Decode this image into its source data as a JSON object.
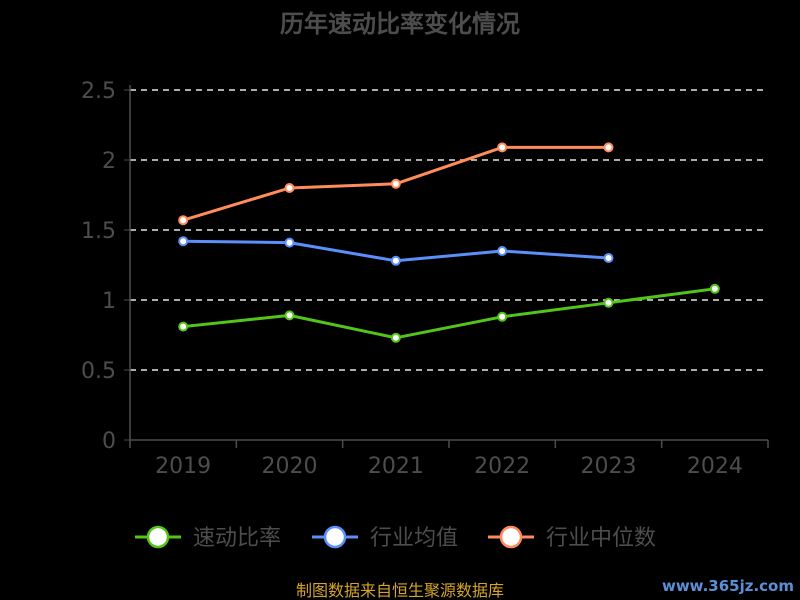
{
  "chart_data": {
    "type": "line",
    "title": "历年速动比率变化情况",
    "categories": [
      "2019",
      "2020",
      "2021",
      "2022",
      "2023",
      "2024"
    ],
    "ylim": [
      0,
      2.5
    ],
    "yticks": [
      "0",
      "0.5",
      "1",
      "1.5",
      "2",
      "2.5"
    ],
    "grid": true,
    "legend_position": "bottom",
    "series": [
      {
        "name": "速动比率",
        "color": "#52c41a",
        "values": [
          0.81,
          0.89,
          0.73,
          0.88,
          0.98,
          1.08
        ]
      },
      {
        "name": "行业均值",
        "color": "#5b8ff9",
        "values": [
          1.42,
          1.41,
          1.28,
          1.35,
          1.3,
          null
        ]
      },
      {
        "name": "行业中位数",
        "color": "#ff8c5a",
        "values": [
          1.57,
          1.8,
          1.83,
          2.09,
          2.09,
          null
        ]
      }
    ]
  },
  "footer": {
    "source": "制图数据来自恒生聚源数据库",
    "watermark": "www.365jz.com"
  }
}
